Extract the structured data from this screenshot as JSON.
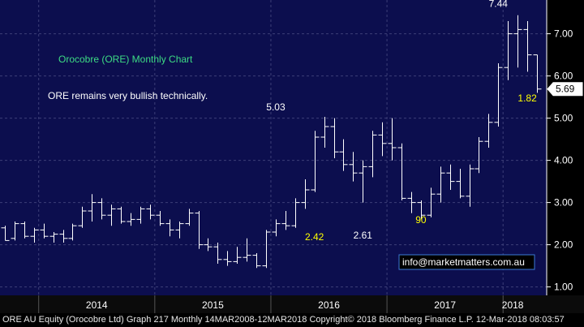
{
  "chart_data": {
    "type": "ohlc",
    "title": "Orocobre (ORE) Monthly Chart",
    "subtitle": "ORE remains very bullish technically.",
    "watermark": "info@marketmatters.com.au",
    "last_price_label": "5.69",
    "last_price": 5.69,
    "ylim": [
      0.8,
      7.8
    ],
    "y_ticks": [
      1.0,
      2.0,
      3.0,
      4.0,
      5.0,
      6.0,
      7.0
    ],
    "y_tick_labels": [
      "1.00",
      "2.00",
      "3.00",
      "4.00",
      "5.00",
      "6.00",
      "7.00"
    ],
    "x_labels": [
      "2014",
      "2015",
      "2016",
      "2017",
      "2018"
    ],
    "grid": true,
    "annotations": [
      {
        "text": "5.03",
        "x": "2016-01",
        "y": 5.03,
        "color": "#ffffff"
      },
      {
        "text": "2.42",
        "x": "2016-05",
        "y": 2.42,
        "color": "#ffff00"
      },
      {
        "text": "2.61",
        "x": "2016-10",
        "y": 2.61,
        "color": "#ffffff"
      },
      {
        "text": "90",
        "x": "2017-04",
        "y": 2.9,
        "color": "#ffff00"
      },
      {
        "text": "7.44",
        "x": "2017-12",
        "y": 7.44,
        "color": "#ffffff"
      },
      {
        "text": "1.82",
        "x": "2018-03",
        "y": 5.7,
        "color": "#ffff00"
      }
    ],
    "months": [
      {
        "x": "2013-09",
        "o": 2.4,
        "h": 2.45,
        "l": 2.1,
        "c": 2.1
      },
      {
        "x": "2013-10",
        "o": 2.15,
        "h": 2.55,
        "l": 2.1,
        "c": 2.5
      },
      {
        "x": "2013-11",
        "o": 2.5,
        "h": 2.55,
        "l": 2.15,
        "c": 2.2
      },
      {
        "x": "2013-12",
        "o": 2.2,
        "h": 2.4,
        "l": 2.05,
        "c": 2.35
      },
      {
        "x": "2014-01",
        "o": 2.35,
        "h": 2.5,
        "l": 2.15,
        "c": 2.2
      },
      {
        "x": "2014-02",
        "o": 2.2,
        "h": 2.3,
        "l": 2.05,
        "c": 2.25
      },
      {
        "x": "2014-03",
        "o": 2.25,
        "h": 2.35,
        "l": 2.05,
        "c": 2.15
      },
      {
        "x": "2014-04",
        "o": 2.15,
        "h": 2.5,
        "l": 2.1,
        "c": 2.45
      },
      {
        "x": "2014-05",
        "o": 2.45,
        "h": 2.9,
        "l": 2.4,
        "c": 2.8
      },
      {
        "x": "2014-06",
        "o": 2.8,
        "h": 3.2,
        "l": 2.55,
        "c": 3.0
      },
      {
        "x": "2014-07",
        "o": 3.0,
        "h": 3.1,
        "l": 2.6,
        "c": 2.7
      },
      {
        "x": "2014-08",
        "o": 2.7,
        "h": 2.95,
        "l": 2.45,
        "c": 2.85
      },
      {
        "x": "2014-09",
        "o": 2.85,
        "h": 2.9,
        "l": 2.5,
        "c": 2.55
      },
      {
        "x": "2014-10",
        "o": 2.55,
        "h": 2.75,
        "l": 2.45,
        "c": 2.6
      },
      {
        "x": "2014-11",
        "o": 2.6,
        "h": 2.9,
        "l": 2.5,
        "c": 2.85
      },
      {
        "x": "2014-12",
        "o": 2.85,
        "h": 2.95,
        "l": 2.6,
        "c": 2.7
      },
      {
        "x": "2015-01",
        "o": 2.7,
        "h": 2.8,
        "l": 2.45,
        "c": 2.5
      },
      {
        "x": "2015-02",
        "o": 2.5,
        "h": 2.6,
        "l": 2.2,
        "c": 2.35
      },
      {
        "x": "2015-03",
        "o": 2.35,
        "h": 2.55,
        "l": 2.15,
        "c": 2.5
      },
      {
        "x": "2015-04",
        "o": 2.5,
        "h": 2.85,
        "l": 2.45,
        "c": 2.75
      },
      {
        "x": "2015-05",
        "o": 2.75,
        "h": 2.8,
        "l": 1.9,
        "c": 2.0
      },
      {
        "x": "2015-06",
        "o": 2.0,
        "h": 2.15,
        "l": 1.85,
        "c": 1.95
      },
      {
        "x": "2015-07",
        "o": 1.95,
        "h": 2.05,
        "l": 1.55,
        "c": 1.65
      },
      {
        "x": "2015-08",
        "o": 1.65,
        "h": 1.85,
        "l": 1.5,
        "c": 1.6
      },
      {
        "x": "2015-09",
        "o": 1.6,
        "h": 1.95,
        "l": 1.55,
        "c": 1.7
      },
      {
        "x": "2015-10",
        "o": 1.7,
        "h": 2.15,
        "l": 1.6,
        "c": 1.75
      },
      {
        "x": "2015-11",
        "o": 1.75,
        "h": 1.8,
        "l": 1.45,
        "c": 1.5
      },
      {
        "x": "2015-12",
        "o": 1.5,
        "h": 2.35,
        "l": 1.45,
        "c": 2.3
      },
      {
        "x": "2016-01",
        "o": 2.3,
        "h": 2.6,
        "l": 2.2,
        "c": 2.5
      },
      {
        "x": "2016-02",
        "o": 2.5,
        "h": 2.8,
        "l": 2.35,
        "c": 2.45
      },
      {
        "x": "2016-03",
        "o": 2.45,
        "h": 3.1,
        "l": 2.4,
        "c": 3.0
      },
      {
        "x": "2016-04",
        "o": 3.0,
        "h": 3.55,
        "l": 2.85,
        "c": 3.3
      },
      {
        "x": "2016-05",
        "o": 3.3,
        "h": 4.7,
        "l": 3.25,
        "c": 4.55
      },
      {
        "x": "2016-06",
        "o": 4.55,
        "h": 5.03,
        "l": 4.3,
        "c": 4.8
      },
      {
        "x": "2016-07",
        "o": 4.8,
        "h": 5.0,
        "l": 4.05,
        "c": 4.2
      },
      {
        "x": "2016-08",
        "o": 4.2,
        "h": 4.5,
        "l": 3.75,
        "c": 3.9
      },
      {
        "x": "2016-09",
        "o": 3.9,
        "h": 4.2,
        "l": 3.5,
        "c": 3.7
      },
      {
        "x": "2016-10",
        "o": 3.7,
        "h": 4.0,
        "l": 3.0,
        "c": 3.85
      },
      {
        "x": "2016-11",
        "o": 3.85,
        "h": 4.7,
        "l": 3.6,
        "c": 4.6
      },
      {
        "x": "2016-12",
        "o": 4.6,
        "h": 4.9,
        "l": 4.1,
        "c": 4.4
      },
      {
        "x": "2017-01",
        "o": 4.4,
        "h": 5.0,
        "l": 4.0,
        "c": 4.3
      },
      {
        "x": "2017-02",
        "o": 4.3,
        "h": 4.4,
        "l": 3.05,
        "c": 3.1
      },
      {
        "x": "2017-03",
        "o": 3.1,
        "h": 3.25,
        "l": 2.75,
        "c": 3.0
      },
      {
        "x": "2017-04",
        "o": 3.0,
        "h": 3.05,
        "l": 2.61,
        "c": 2.7
      },
      {
        "x": "2017-05",
        "o": 2.7,
        "h": 3.35,
        "l": 2.65,
        "c": 3.2
      },
      {
        "x": "2017-06",
        "o": 3.2,
        "h": 3.85,
        "l": 3.0,
        "c": 3.7
      },
      {
        "x": "2017-07",
        "o": 3.7,
        "h": 3.9,
        "l": 3.3,
        "c": 3.5
      },
      {
        "x": "2017-08",
        "o": 3.5,
        "h": 3.8,
        "l": 3.1,
        "c": 3.15
      },
      {
        "x": "2017-09",
        "o": 3.15,
        "h": 3.9,
        "l": 2.9,
        "c": 3.8
      },
      {
        "x": "2017-10",
        "o": 3.8,
        "h": 4.55,
        "l": 3.7,
        "c": 4.45
      },
      {
        "x": "2017-11",
        "o": 4.45,
        "h": 5.1,
        "l": 4.3,
        "c": 4.9
      },
      {
        "x": "2017-12",
        "o": 4.9,
        "h": 6.3,
        "l": 4.8,
        "c": 6.2
      },
      {
        "x": "2018-01",
        "o": 6.2,
        "h": 7.3,
        "l": 5.9,
        "c": 7.0
      },
      {
        "x": "2018-02",
        "o": 7.0,
        "h": 7.44,
        "l": 6.2,
        "c": 7.1
      },
      {
        "x": "2018-03",
        "o": 7.1,
        "h": 7.3,
        "l": 6.1,
        "c": 6.5
      },
      {
        "x": "2018-04",
        "o": 6.5,
        "h": 6.3,
        "l": 5.6,
        "c": 5.69
      }
    ]
  },
  "footer": {
    "text": "ORE AU Equity (Orocobre Ltd) Graph 217  Monthly 14MAR2008-12MAR2018 Copyright© 2018 Bloomberg Finance L.P.  12-Mar-2018 08:03:57"
  },
  "colors": {
    "background": "#000000",
    "plot_background": "#0c0e4e",
    "grid": "#3c3f78",
    "bars": "#ffffff",
    "title": "#3ddc84",
    "annotation_yellow": "#ffff00",
    "watermark_border": "#3b7bd6"
  }
}
